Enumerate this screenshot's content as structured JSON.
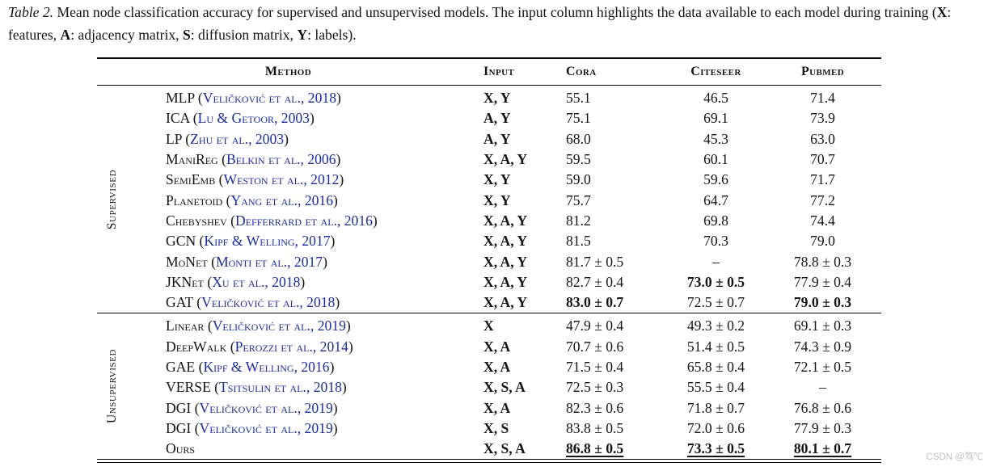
{
  "colors": {
    "citation_blue": "#1b2d9e",
    "text": "#141414"
  },
  "watermark": "CSDN @笃℃",
  "caption": {
    "parts": [
      {
        "t": "Table 2.",
        "s": "i"
      },
      {
        "t": " Mean node classification accuracy for supervised and unsupervised models. The input column highlights the data available to each model during training (",
        "s": ""
      },
      {
        "t": "X",
        "s": "b"
      },
      {
        "t": ": features, ",
        "s": ""
      },
      {
        "t": "A",
        "s": "b"
      },
      {
        "t": ": adjacency matrix, ",
        "s": ""
      },
      {
        "t": "S",
        "s": "b"
      },
      {
        "t": ": diffusion matrix, ",
        "s": ""
      },
      {
        "t": "Y",
        "s": "b"
      },
      {
        "t": ": labels).",
        "s": ""
      }
    ]
  },
  "table": {
    "headers": [
      "Method",
      "Input",
      "Cora",
      "Citeseer",
      "Pubmed"
    ],
    "sections": [
      {
        "label": "Supervised",
        "rows": [
          {
            "method": "MLP",
            "cite": "Veličković et al., 2018",
            "input": "X, Y",
            "cora": "55.1",
            "citeseer": "46.5",
            "pubmed": "71.4"
          },
          {
            "method": "ICA",
            "cite": "Lu & Getoor, 2003",
            "input": "A, Y",
            "cora": "75.1",
            "citeseer": "69.1",
            "pubmed": "73.9"
          },
          {
            "method": "LP",
            "cite": "Zhu et al., 2003",
            "input": "A, Y",
            "cora": "68.0",
            "citeseer": "45.3",
            "pubmed": "63.0"
          },
          {
            "method": "ManiReg",
            "cite": "Belkin et al., 2006",
            "input": "X, A, Y",
            "cora": "59.5",
            "citeseer": "60.1",
            "pubmed": "70.7"
          },
          {
            "method": "SemiEmb",
            "cite": "Weston et al., 2012",
            "input": "X, Y",
            "cora": "59.0",
            "citeseer": "59.6",
            "pubmed": "71.7"
          },
          {
            "method": "Planetoid",
            "cite": "Yang et al., 2016",
            "input": "X, Y",
            "cora": "75.7",
            "citeseer": "64.7",
            "pubmed": "77.2"
          },
          {
            "method": "Chebyshev",
            "cite": "Defferrard et al., 2016",
            "input": "X, A, Y",
            "cora": "81.2",
            "citeseer": "69.8",
            "pubmed": "74.4"
          },
          {
            "method": "GCN",
            "cite": "Kipf & Welling, 2017",
            "input": "X, A, Y",
            "cora": "81.5",
            "citeseer": "70.3",
            "pubmed": "79.0"
          },
          {
            "method": "MoNet",
            "cite": "Monti et al., 2017",
            "input": "X, A, Y",
            "cora": "81.7 ± 0.5",
            "citeseer": "–",
            "pubmed": "78.8 ± 0.3"
          },
          {
            "method": "JKNet",
            "cite": "Xu et al., 2018",
            "input": "X, A, Y",
            "cora": "82.7 ± 0.4",
            "citeseer": {
              "t": "73.0 ± 0.5",
              "b": true
            },
            "pubmed": "77.9 ± 0.4"
          },
          {
            "method": "GAT",
            "cite": "Veličković et al., 2018",
            "input": "X, A, Y",
            "cora": {
              "t": "83.0 ± 0.7",
              "b": true
            },
            "citeseer": "72.5 ± 0.7",
            "pubmed": {
              "t": "79.0 ± 0.3",
              "b": true
            }
          }
        ]
      },
      {
        "label": "Unsupervised",
        "rows": [
          {
            "method": "Linear",
            "cite": "Veličković et al., 2019",
            "input": "X",
            "cora": "47.9 ± 0.4",
            "citeseer": "49.3 ± 0.2",
            "pubmed": "69.1 ± 0.3"
          },
          {
            "method": "DeepWalk",
            "cite": "Perozzi et al., 2014",
            "input": "X, A",
            "cora": "70.7 ± 0.6",
            "citeseer": "51.4 ± 0.5",
            "pubmed": "74.3 ± 0.9"
          },
          {
            "method": "GAE",
            "cite": "Kipf & Welling, 2016",
            "input": "X, A",
            "cora": "71.5 ± 0.4",
            "citeseer": "65.8 ± 0.4",
            "pubmed": "72.1 ± 0.5"
          },
          {
            "method": "VERSE",
            "cite": "Tsitsulin et al., 2018",
            "input": "X, S, A",
            "cora": "72.5 ± 0.3",
            "citeseer": "55.5 ± 0.4",
            "pubmed": "–"
          },
          {
            "method": "DGI",
            "cite": "Veličković et al., 2019",
            "input": "X, A",
            "cora": "82.3 ± 0.6",
            "citeseer": "71.8 ± 0.7",
            "pubmed": "76.8 ± 0.6"
          },
          {
            "method": "DGI",
            "cite": "Veličković et al., 2019",
            "input": "X, S",
            "cora": "83.8 ± 0.5",
            "citeseer": "72.0 ± 0.6",
            "pubmed": "77.9 ± 0.3"
          },
          {
            "method": "Ours",
            "cite": null,
            "input": "X, S, A",
            "cora": {
              "t": "86.8 ± 0.5",
              "b": true,
              "u": true
            },
            "citeseer": {
              "t": "73.3 ± 0.5",
              "b": true,
              "u": true
            },
            "pubmed": {
              "t": "80.1 ± 0.7",
              "b": true,
              "u": true
            }
          }
        ]
      }
    ]
  }
}
